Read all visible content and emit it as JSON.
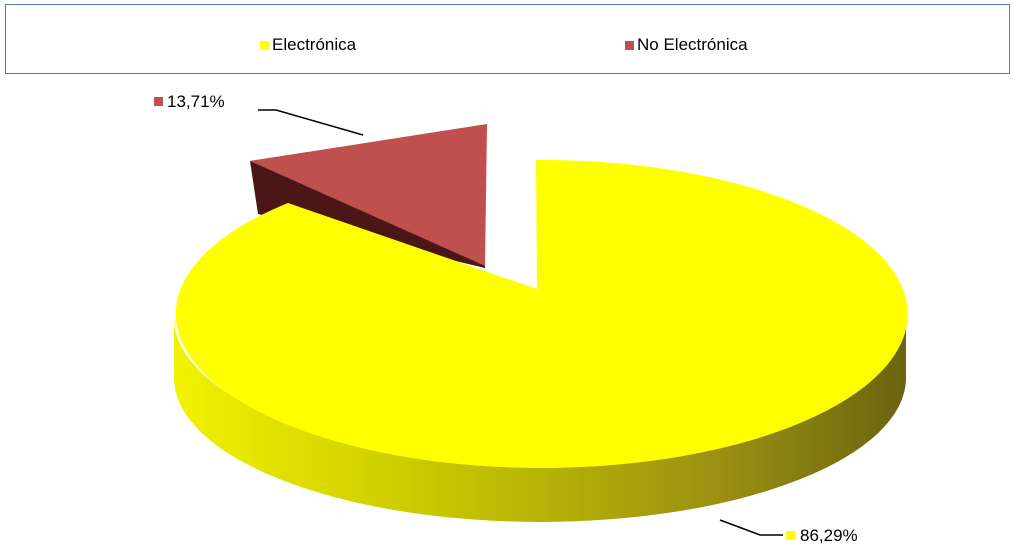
{
  "chart_data": {
    "type": "pie",
    "style": "3d-exploded",
    "series": [
      {
        "name": "Electrónica",
        "value": 86.29,
        "label": "86,29%",
        "color": "#ffff00"
      },
      {
        "name": "No Electrónica",
        "value": 13.71,
        "label": "13,71%",
        "color": "#c0504d"
      }
    ],
    "legend_position": "top"
  }
}
